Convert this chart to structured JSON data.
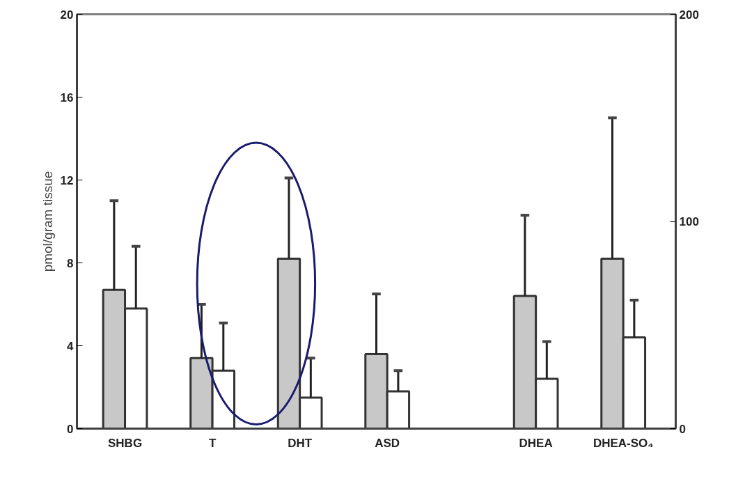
{
  "chart_data": {
    "type": "bar",
    "ylabel": "pmol/gram tissue",
    "categories": [
      "SHBG",
      "T",
      "DHT",
      "ASD",
      "DHEA",
      "DHEA-SO₄"
    ],
    "series": [
      {
        "color": "#c8c8c8",
        "values": [
          6.7,
          3.4,
          8.2,
          3.6,
          null,
          null
        ],
        "errors": [
          [
            6.7,
            11.0
          ],
          [
            3.4,
            6.0
          ],
          [
            8.2,
            12.1
          ],
          [
            3.6,
            6.5
          ],
          null,
          null
        ]
      },
      {
        "color": "#ffffff",
        "values": [
          5.8,
          2.8,
          1.5,
          1.8,
          null,
          null
        ],
        "errors": [
          [
            5.8,
            8.8
          ],
          [
            2.8,
            5.1
          ],
          [
            1.5,
            3.4
          ],
          [
            1.8,
            2.8
          ],
          null,
          null
        ]
      },
      {
        "color": "#c8c8c8",
        "axis": "y2",
        "values": [
          null,
          null,
          null,
          null,
          64,
          82
        ],
        "errors": [
          null,
          null,
          null,
          null,
          [
            64,
            103
          ],
          [
            82,
            150
          ]
        ]
      },
      {
        "color": "#ffffff",
        "axis": "y2",
        "values": [
          null,
          null,
          null,
          null,
          24,
          44
        ],
        "errors": [
          null,
          null,
          null,
          null,
          [
            24,
            42
          ],
          [
            44,
            62
          ]
        ]
      }
    ],
    "ylim": [
      0,
      20
    ],
    "yticks": [
      0,
      4,
      8,
      12,
      16,
      20
    ],
    "y2lim": [
      0,
      200
    ],
    "y2ticks": [
      0,
      100,
      200
    ],
    "grid": false
  }
}
